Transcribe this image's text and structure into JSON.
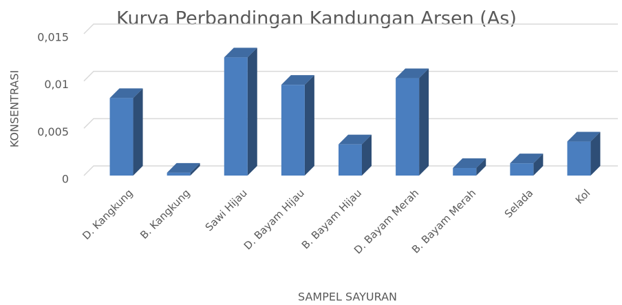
{
  "chart_data": {
    "type": "bar3d",
    "title": "Kurva Perbandingan Kandungan Arsen (As)",
    "x_label": "SAMPEL SAYURAN",
    "y_label": "KONSENTRASI",
    "categories": [
      "D. Kangkung",
      "B. Kangkung",
      "Sawi Hijau",
      "D. Bayam Hijau",
      "B. Bayam Hijau",
      "D. Bayam Merah",
      "B. Bayam Merah",
      "Selada",
      "Kol"
    ],
    "values": [
      0.0082,
      0.0003,
      0.0125,
      0.0096,
      0.0033,
      0.0103,
      0.0008,
      0.0013,
      0.0036
    ],
    "color": "#4a7ebf",
    "ylim": [
      0,
      0.015
    ],
    "yticks": [
      0,
      {
        "value": 0.005,
        "label": "0,005"
      },
      {
        "value": 0.01,
        "label": "0,01"
      },
      {
        "value": 0.015,
        "label": "0,015"
      }
    ],
    "grid": true
  }
}
